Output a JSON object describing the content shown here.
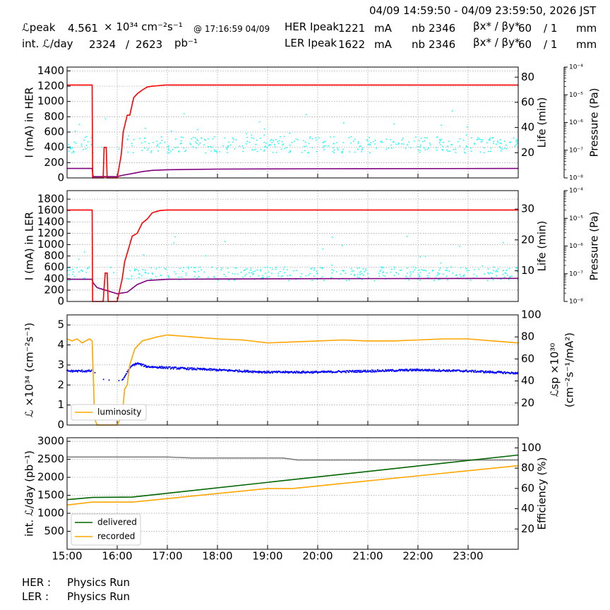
{
  "header": {
    "time_range": "04/09 14:59:50 - 04/09 23:59:50, 2026 JST",
    "lpeak_label": "ℒpeak",
    "lpeak_value": "4.561",
    "lpeak_unit": "× 10³⁴ cm⁻²s⁻¹",
    "lpeak_time": "@ 17:16:59 04/09",
    "intl_label": "int. ℒ/day",
    "intl_value1": "2324",
    "intl_sep": "/",
    "intl_value2": "2623",
    "intl_unit": "pb⁻¹",
    "her_label": "HER Ipeak",
    "her_value": "1221",
    "her_unit": "mA",
    "ler_label": "LER Ipeak",
    "ler_value": "1622",
    "ler_unit": "mA",
    "nb_label": "nb",
    "her_nb": "2346",
    "ler_nb": "2346",
    "beta_label": "βx* / βy*",
    "her_beta_x": "60",
    "her_beta_y": "/ 1",
    "ler_beta_x": "60",
    "ler_beta_y": "/ 1",
    "beta_unit": "mm"
  },
  "footer": {
    "her_label": "HER :",
    "her_status": "Physics Run",
    "ler_label": "LER :",
    "ler_status": "Physics Run"
  },
  "colors": {
    "current": "#ff0000",
    "life": "#800080",
    "pressure": "#00ffff",
    "luminosity": "#ffa500",
    "specific_lumi": "#0000ff",
    "delivered": "#006400",
    "recorded": "#ffa500",
    "efficiency": "#808080"
  },
  "chart_data": [
    {
      "type": "line",
      "name": "HER",
      "ylabel": "I (mA) in HER",
      "ylim": [
        0,
        1450
      ],
      "yticks": [
        "0",
        "200",
        "400",
        "600",
        "800",
        "1000",
        "1200",
        "1400"
      ],
      "y2label": "Life (min)",
      "y2lim": [
        0,
        88
      ],
      "y2ticks": [
        "20",
        "40",
        "60",
        "80"
      ],
      "y3label": "Pressure (Pa)",
      "y3log": true,
      "y3ticks": [
        "10⁻⁸",
        "10⁻⁷",
        "10⁻⁶",
        "10⁻⁵",
        "10⁻⁴"
      ],
      "grid": true,
      "current": {
        "x": [
          15.0,
          15.5,
          15.51,
          15.72,
          15.74,
          15.78,
          15.8,
          16.0,
          16.08,
          16.12,
          16.2,
          16.25,
          16.33,
          16.4,
          16.5,
          16.6,
          16.7,
          16.8,
          16.95,
          17.0,
          24.0
        ],
        "y": [
          1215,
          1215,
          0,
          0,
          400,
          400,
          0,
          0,
          300,
          600,
          820,
          820,
          1050,
          1100,
          1150,
          1190,
          1200,
          1205,
          1215,
          1215,
          1215
        ]
      },
      "life": {
        "x": [
          15.0,
          15.5,
          15.52,
          16.0,
          16.1,
          16.3,
          16.5,
          16.7,
          17.0,
          18.0,
          20.0,
          24.0
        ],
        "y": [
          7.5,
          7.5,
          1,
          1,
          2,
          3.5,
          5,
          6,
          6.5,
          7,
          7.3,
          7.5
        ]
      },
      "pressure_band": {
        "center_log": -6.8,
        "spread": 0.3
      }
    },
    {
      "type": "line",
      "name": "LER",
      "ylabel": "I (mA) in LER",
      "ylim": [
        0,
        1950
      ],
      "yticks": [
        "0",
        "200",
        "400",
        "600",
        "800",
        "1000",
        "1200",
        "1400",
        "1600",
        "1800"
      ],
      "y2label": "Life (min)",
      "y2lim": [
        0,
        36
      ],
      "y2ticks": [
        "10",
        "20",
        "30"
      ],
      "y3label": "Pressure (Pa)",
      "y3log": true,
      "y3ticks": [
        "10⁻⁸",
        "10⁻⁷",
        "10⁻⁶",
        "10⁻⁵",
        "10⁻⁴"
      ],
      "grid": true,
      "current": {
        "x": [
          15.0,
          15.5,
          15.51,
          15.72,
          15.76,
          15.8,
          15.82,
          16.0,
          16.1,
          16.15,
          16.25,
          16.3,
          16.4,
          16.5,
          16.6,
          16.7,
          16.85,
          17.0,
          24.0
        ],
        "y": [
          1610,
          1610,
          0,
          0,
          500,
          500,
          0,
          0,
          400,
          700,
          1000,
          1150,
          1200,
          1380,
          1450,
          1560,
          1600,
          1610,
          1610
        ]
      },
      "life": {
        "x": [
          15.0,
          15.5,
          15.52,
          15.6,
          15.8,
          16.0,
          16.2,
          16.4,
          16.6,
          17.0,
          18.0,
          20.0,
          24.0
        ],
        "y": [
          7.2,
          7.2,
          6,
          4.5,
          3.5,
          2.5,
          3,
          5.5,
          6.8,
          7.2,
          7.3,
          7.4,
          7.5
        ]
      },
      "pressure_band": {
        "center_log": -7.0,
        "spread": 0.25
      }
    },
    {
      "type": "line",
      "name": "Luminosity",
      "ylabel": "ℒ ×10³⁴ (cm⁻²s⁻¹)",
      "ylim": [
        0,
        5.5
      ],
      "yticks": [
        "0",
        "1",
        "2",
        "3",
        "4",
        "5"
      ],
      "y2label": "ℒsp ×10³⁰ (cm⁻²s⁻¹/mA²)",
      "y2lim": [
        0,
        100
      ],
      "y2ticks": [
        "20",
        "40",
        "60",
        "80",
        "100"
      ],
      "legend": [
        "luminosity"
      ],
      "legend_loc": "lower-left",
      "grid": true,
      "luminosity": {
        "x": [
          15.0,
          15.1,
          15.2,
          15.3,
          15.45,
          15.5,
          15.55,
          15.6,
          15.75,
          15.9,
          16.0,
          16.1,
          16.15,
          16.2,
          16.25,
          16.35,
          16.5,
          16.8,
          17.0,
          17.5,
          18.0,
          18.5,
          19.0,
          19.5,
          20.0,
          20.5,
          21.0,
          21.5,
          22.0,
          22.5,
          23.0,
          23.5,
          24.0
        ],
        "y": [
          4.3,
          4.2,
          4.3,
          4.1,
          4.3,
          4.2,
          0.3,
          0,
          0,
          0,
          0,
          0.5,
          1.8,
          2.0,
          3.0,
          3.8,
          4.2,
          4.4,
          4.5,
          4.4,
          4.3,
          4.25,
          4.1,
          4.15,
          4.2,
          4.25,
          4.2,
          4.2,
          4.25,
          4.3,
          4.3,
          4.2,
          4.1
        ]
      },
      "specific": {
        "x": [
          15.0,
          15.5,
          15.75,
          16.1,
          16.2,
          16.3,
          16.4,
          16.6,
          17.0,
          18.0,
          19.0,
          20.0,
          21.0,
          22.0,
          23.0,
          24.0
        ],
        "y": [
          49,
          49,
          40,
          40,
          48,
          54,
          56,
          53,
          52,
          50,
          48,
          48,
          49,
          50,
          49,
          47
        ]
      }
    },
    {
      "type": "line",
      "name": "Integrated luminosity",
      "ylabel": "int. ℒ/day (pb⁻¹)",
      "ylim": [
        0,
        3100
      ],
      "yticks": [
        "500",
        "1000",
        "1500",
        "2000",
        "2500",
        "3000"
      ],
      "y2label": "Efficiency (%)",
      "y2lim": [
        0,
        110
      ],
      "y2ticks": [
        "20",
        "40",
        "60",
        "80",
        "100"
      ],
      "x": [
        "15:00",
        "16:00",
        "17:00",
        "18:00",
        "19:00",
        "20:00",
        "21:00",
        "22:00",
        "23:00"
      ],
      "xlim": [
        15,
        24
      ],
      "legend": [
        "delivered",
        "recorded"
      ],
      "legend_loc": "lower-left",
      "grid": true,
      "delivered": {
        "x": [
          15.0,
          15.5,
          16.3,
          24.0
        ],
        "y": [
          1380,
          1440,
          1450,
          2620
        ]
      },
      "recorded": {
        "x": [
          15.0,
          15.5,
          16.3,
          19.0,
          19.5,
          24.0
        ],
        "y": [
          1230,
          1310,
          1310,
          1690,
          1690,
          2324
        ]
      },
      "efficiency": {
        "x": [
          15.0,
          17.0,
          17.5,
          19.3,
          19.6,
          24.0
        ],
        "y": [
          91,
          91,
          90,
          90,
          88,
          88
        ]
      }
    }
  ]
}
